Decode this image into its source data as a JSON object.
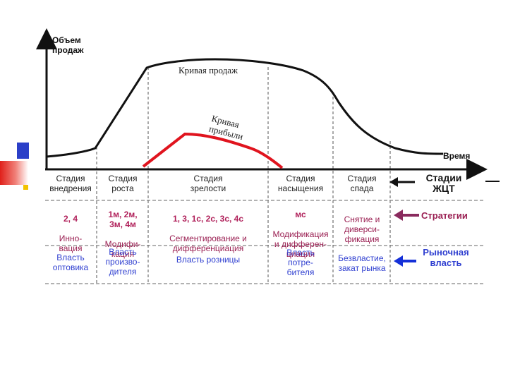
{
  "axes": {
    "y_label": "Объем\nпродаж",
    "x_label": "Время"
  },
  "curves": {
    "sales_label": "Кривая продаж",
    "profit_label": "Кривая\nприбыли"
  },
  "stages": [
    {
      "head": "Стадия\nвнедрения",
      "strategy_codes": "2, 4",
      "strategy_text": "Инно-\nвация",
      "power": "Власть\nоптовика"
    },
    {
      "head": "Стадия\nроста",
      "strategy_codes": "1м, 2м,\n3м, 4м",
      "strategy_text": "Модифи-\nкация",
      "power": "Власть\nпроизво-\nдителя"
    },
    {
      "head": "Стадия\nзрелости",
      "strategy_codes": "1, 3, 1с, 2с, 3с, 4с",
      "strategy_text": "Сегментирование и\nдифференциация",
      "power": "Власть розницы"
    },
    {
      "head": "Стадия\nнасыщения",
      "strategy_codes": "мс",
      "strategy_text": "Модификация\nи дифферен-\nциация",
      "power": "Власть\nпотре-\nбителя"
    },
    {
      "head": "Стадия\nспада",
      "strategy_codes": "",
      "strategy_text": "Снятие и\nдиверси-\nфикация",
      "power": "Безвластие,\nзакат рынка"
    }
  ],
  "legend": {
    "stages": "Стадии\nЖЦТ",
    "strategies": "Стратегии",
    "power": "Рыночная\nвласть"
  },
  "colors": {
    "sales": "#111111",
    "profit": "#e0141e",
    "strategy": "#9a1f52",
    "power": "#2f3fd0",
    "arrow_strategy": "#8a2b5e",
    "arrow_power": "#1530d8",
    "deco_blue": "#2b3fc8",
    "deco_red": "#e0201a",
    "deco_yellow": "#f2c200"
  }
}
